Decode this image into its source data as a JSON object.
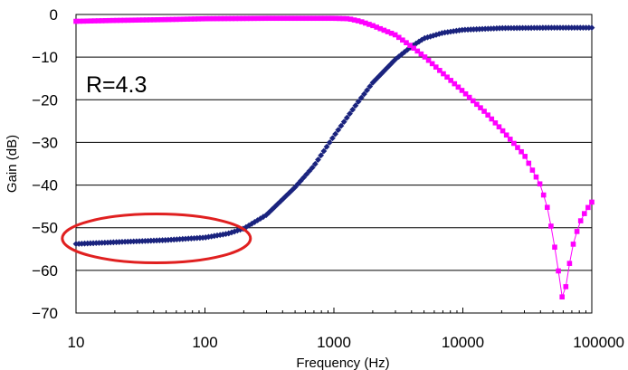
{
  "chart_data": {
    "type": "line",
    "x_scale": "log",
    "xlabel": "Frequency (Hz)",
    "ylabel": "Gain (dB)",
    "xlim": [
      10,
      100000
    ],
    "ylim": [
      -70,
      0
    ],
    "x_ticks": [
      10,
      100,
      1000,
      10000,
      100000
    ],
    "x_tick_labels": [
      "10",
      "100",
      "1000",
      "10000",
      "100000"
    ],
    "y_ticks": [
      0,
      -10,
      -20,
      -30,
      -40,
      -50,
      -60,
      -70
    ],
    "y_tick_labels": [
      "0",
      "−10",
      "−20",
      "−30",
      "−40",
      "−50",
      "−60",
      "−70"
    ],
    "grid": "horizontal",
    "annotation": "R=4.3",
    "highlight_ellipse": {
      "x_center": 42,
      "y_center": -52.5,
      "color": "#e02020"
    },
    "series": [
      {
        "color": "#1a237e",
        "marker": "diamond",
        "points": [
          [
            10,
            -53.8
          ],
          [
            20,
            -53.4
          ],
          [
            50,
            -52.9
          ],
          [
            100,
            -52.3
          ],
          [
            150,
            -51.4
          ],
          [
            200,
            -50.2
          ],
          [
            300,
            -47.0
          ],
          [
            500,
            -40.5
          ],
          [
            700,
            -35.5
          ],
          [
            1000,
            -28.5
          ],
          [
            1500,
            -21.0
          ],
          [
            2000,
            -16.0
          ],
          [
            3000,
            -10.5
          ],
          [
            4000,
            -7.5
          ],
          [
            5000,
            -5.6
          ],
          [
            7000,
            -4.3
          ],
          [
            10000,
            -3.6
          ],
          [
            20000,
            -3.2
          ],
          [
            50000,
            -3.1
          ],
          [
            100000,
            -3.1
          ]
        ]
      },
      {
        "color": "#ff00ff",
        "marker": "square",
        "points": [
          [
            10,
            -1.6
          ],
          [
            20,
            -1.4
          ],
          [
            50,
            -1.2
          ],
          [
            100,
            -1.0
          ],
          [
            300,
            -0.9
          ],
          [
            1000,
            -0.9
          ],
          [
            1300,
            -1.0
          ],
          [
            1600,
            -1.6
          ],
          [
            2000,
            -2.6
          ],
          [
            3000,
            -4.8
          ],
          [
            4000,
            -7.5
          ],
          [
            5000,
            -9.8
          ],
          [
            7000,
            -13.8
          ],
          [
            10000,
            -18.0
          ],
          [
            15000,
            -23.0
          ],
          [
            20000,
            -27.0
          ],
          [
            30000,
            -33.0
          ],
          [
            40000,
            -40.0
          ],
          [
            45000,
            -45.0
          ],
          [
            50000,
            -52.0
          ],
          [
            55000,
            -60.0
          ],
          [
            60000,
            -68.0
          ],
          [
            62000,
            -65.0
          ],
          [
            70000,
            -55.0
          ],
          [
            80000,
            -49.0
          ],
          [
            90000,
            -46.0
          ],
          [
            100000,
            -44.0
          ]
        ]
      }
    ]
  }
}
